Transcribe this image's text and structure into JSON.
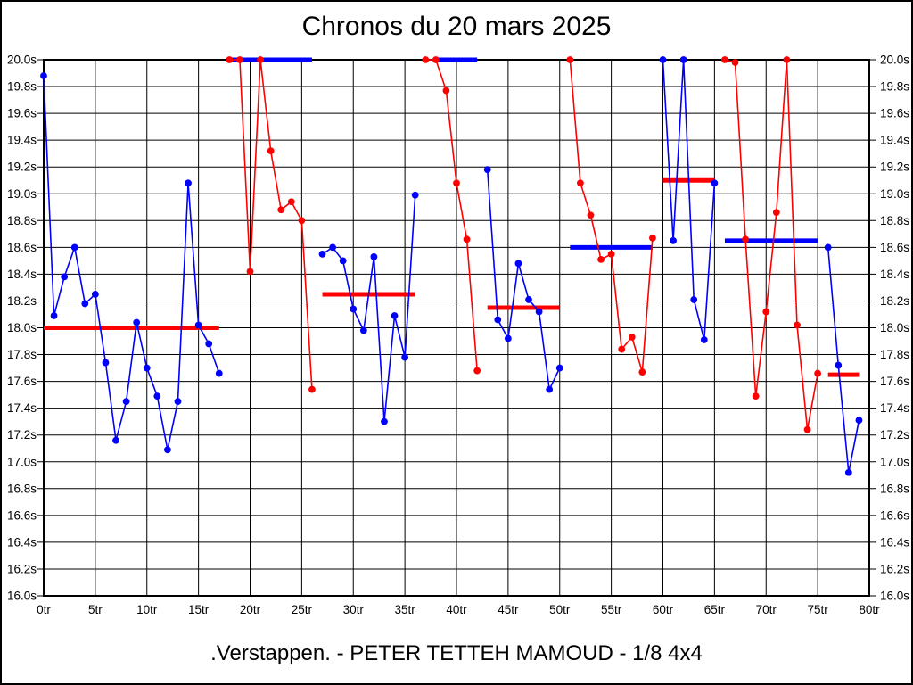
{
  "canvas": {
    "background": "#ffffff",
    "border_color": "#000000",
    "text_color": "#000000",
    "grid_color": "#000000"
  },
  "chart_data": {
    "type": "line",
    "title": "Chronos du 20 mars 2025",
    "footer": ".Verstappen. - PETER TETTEH MAMOUD - 1/8 4x4",
    "legend": false,
    "grid": true,
    "x_axis": {
      "unit": "tr",
      "min": 0,
      "max": 80,
      "tick_step": 5,
      "tick_labels": [
        "0tr",
        "5tr",
        "10tr",
        "15tr",
        "20tr",
        "25tr",
        "30tr",
        "35tr",
        "40tr",
        "45tr",
        "50tr",
        "55tr",
        "60tr",
        "65tr",
        "70tr",
        "75tr",
        "80tr"
      ]
    },
    "y_axis": {
      "unit": "s",
      "min": 16.0,
      "max": 20.0,
      "tick_step": 0.2,
      "tick_labels": [
        "20.0s",
        "19.8s",
        "19.6s",
        "19.4s",
        "19.2s",
        "19.0s",
        "18.8s",
        "18.6s",
        "18.4s",
        "18.2s",
        "18.0s",
        "17.8s",
        "17.6s",
        "17.4s",
        "17.2s",
        "17.0s",
        "16.8s",
        "16.6s",
        "16.4s",
        "16.2s",
        "16.0s"
      ]
    },
    "clip_value": 20.0,
    "series": [
      {
        "name": "blue-driver-laps",
        "color": "#0000ff",
        "point_style": "circle",
        "stints": [
          {
            "start_lap": 0,
            "values": [
              19.88,
              18.09,
              18.38,
              18.6,
              18.18,
              18.25,
              17.74,
              17.16,
              17.45,
              18.04,
              17.7,
              17.49,
              17.09,
              17.45,
              19.08,
              18.02,
              17.88,
              17.66
            ]
          },
          {
            "start_lap": 27,
            "values": [
              18.55,
              18.6,
              18.5,
              18.14,
              17.98,
              18.53,
              17.3,
              18.09,
              17.78,
              18.99
            ]
          },
          {
            "start_lap": 43,
            "values": [
              19.18,
              18.06,
              17.92,
              18.48,
              18.21,
              18.12,
              17.54,
              17.7
            ]
          },
          {
            "start_lap": 60,
            "values": [
              20.0,
              18.65,
              20.0,
              18.21,
              17.91,
              19.08
            ]
          },
          {
            "start_lap": 76,
            "values": [
              18.6,
              17.72,
              16.92,
              17.31
            ]
          }
        ]
      },
      {
        "name": "red-driver-laps",
        "color": "#ff0000",
        "point_style": "circle",
        "stints": [
          {
            "start_lap": 18,
            "values": [
              20.0,
              20.0,
              18.42,
              20.0,
              19.32,
              18.88,
              18.94,
              18.8,
              17.54
            ]
          },
          {
            "start_lap": 37,
            "values": [
              20.0,
              20.0,
              19.77,
              19.08,
              18.66,
              17.68
            ]
          },
          {
            "start_lap": 51,
            "values": [
              20.0,
              19.08,
              18.84,
              18.51,
              18.55,
              17.84,
              17.93,
              17.67,
              18.67
            ]
          },
          {
            "start_lap": 66,
            "values": [
              20.0,
              19.98,
              18.66,
              17.49,
              18.12,
              18.86,
              20.0,
              18.02,
              17.24,
              17.66
            ]
          }
        ]
      }
    ],
    "stint_average_bars": [
      {
        "color": "#ff0000",
        "lap_from": 0,
        "lap_to": 17,
        "value": 18.0
      },
      {
        "color": "#0000ff",
        "lap_from": 18,
        "lap_to": 26,
        "value": 20.0
      },
      {
        "color": "#ff0000",
        "lap_from": 27,
        "lap_to": 36,
        "value": 18.25
      },
      {
        "color": "#0000ff",
        "lap_from": 38,
        "lap_to": 42,
        "value": 20.0
      },
      {
        "color": "#ff0000",
        "lap_from": 43,
        "lap_to": 50,
        "value": 18.15
      },
      {
        "color": "#0000ff",
        "lap_from": 51,
        "lap_to": 59,
        "value": 18.6
      },
      {
        "color": "#ff0000",
        "lap_from": 60,
        "lap_to": 65,
        "value": 19.1
      },
      {
        "color": "#0000ff",
        "lap_from": 66,
        "lap_to": 75,
        "value": 18.65
      },
      {
        "color": "#ff0000",
        "lap_from": 76,
        "lap_to": 79,
        "value": 17.65
      }
    ]
  }
}
